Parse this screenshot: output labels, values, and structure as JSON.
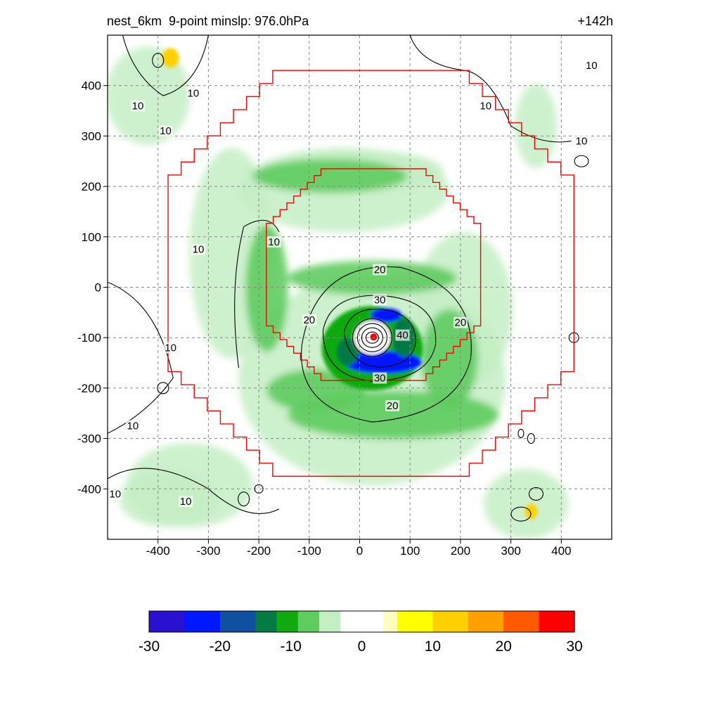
{
  "title_left": "nest_6km  9-point minslp: 976.0hPa",
  "title_right": "+142h",
  "chart_data": {
    "type": "heatmap",
    "xlim": [
      -500,
      500
    ],
    "ylim": [
      -500,
      500
    ],
    "xticks": [
      -400,
      -300,
      -200,
      -100,
      0,
      100,
      200,
      300,
      400
    ],
    "yticks": [
      -400,
      -300,
      -200,
      -100,
      0,
      100,
      200,
      300,
      400
    ],
    "xtick_labels": [
      "-400",
      "-300",
      "-200",
      "-100",
      "0",
      "100",
      "200",
      "300",
      "400"
    ],
    "ytick_labels": [
      "-400",
      "-300",
      "-200",
      "-100",
      "0",
      "100",
      "200",
      "300",
      "400"
    ],
    "grid": true,
    "center": [
      25,
      -100
    ],
    "contour_levels": [
      10,
      20,
      30,
      40
    ],
    "contour_labels": [
      {
        "text": "10",
        "x": 460,
        "y": 440
      },
      {
        "text": "10",
        "x": -330,
        "y": 385
      },
      {
        "text": "10",
        "x": -440,
        "y": 360
      },
      {
        "text": "10",
        "x": -385,
        "y": 310
      },
      {
        "text": "10",
        "x": 250,
        "y": 360
      },
      {
        "text": "10",
        "x": 440,
        "y": 290
      },
      {
        "text": "10",
        "x": -320,
        "y": 75
      },
      {
        "text": "10",
        "x": -170,
        "y": 90
      },
      {
        "text": "10",
        "x": -375,
        "y": -120
      },
      {
        "text": "10",
        "x": -450,
        "y": -275
      },
      {
        "text": "10",
        "x": -485,
        "y": -410
      },
      {
        "text": "10",
        "x": -345,
        "y": -425
      },
      {
        "text": "20",
        "x": 40,
        "y": 35
      },
      {
        "text": "20",
        "x": -100,
        "y": -65
      },
      {
        "text": "20",
        "x": 200,
        "y": -70
      },
      {
        "text": "20",
        "x": 65,
        "y": -235
      },
      {
        "text": "30",
        "x": 40,
        "y": -25
      },
      {
        "text": "30",
        "x": 40,
        "y": -180
      },
      {
        "text": "40",
        "x": 85,
        "y": -95
      }
    ],
    "nest_boxes": [
      {
        "name": "outer",
        "x_range": [
          -380,
          425
        ],
        "y_range": [
          -375,
          430
        ]
      },
      {
        "name": "inner",
        "x_range": [
          -185,
          240
        ],
        "y_range": [
          -185,
          235
        ]
      }
    ],
    "colorbar": {
      "min": -30,
      "max": 30,
      "ticks": [
        -30,
        -20,
        -10,
        0,
        10,
        20,
        30
      ],
      "tick_labels": [
        "-30",
        "-20",
        "-10",
        "0",
        "10",
        "20",
        "30"
      ],
      "stops": [
        {
          "v": -30,
          "color": "#4a0a8c"
        },
        {
          "v": -25,
          "color": "#2a10d0"
        },
        {
          "v": -20,
          "color": "#0018ff"
        },
        {
          "v": -15,
          "color": "#1050a0"
        },
        {
          "v": -12,
          "color": "#067a45"
        },
        {
          "v": -9,
          "color": "#10aa10"
        },
        {
          "v": -6,
          "color": "#5fcc5f"
        },
        {
          "v": -3,
          "color": "#c4eec4"
        },
        {
          "v": -1.2,
          "color": "#ffffff"
        },
        {
          "v": 3,
          "color": "#ffffff"
        },
        {
          "v": 5,
          "color": "#ffffc0"
        },
        {
          "v": 10,
          "color": "#ffff00"
        },
        {
          "v": 15,
          "color": "#ffd000"
        },
        {
          "v": 20,
          "color": "#ffa000"
        },
        {
          "v": 25,
          "color": "#ff5a00"
        },
        {
          "v": 30,
          "color": "#ff0000"
        }
      ]
    }
  }
}
